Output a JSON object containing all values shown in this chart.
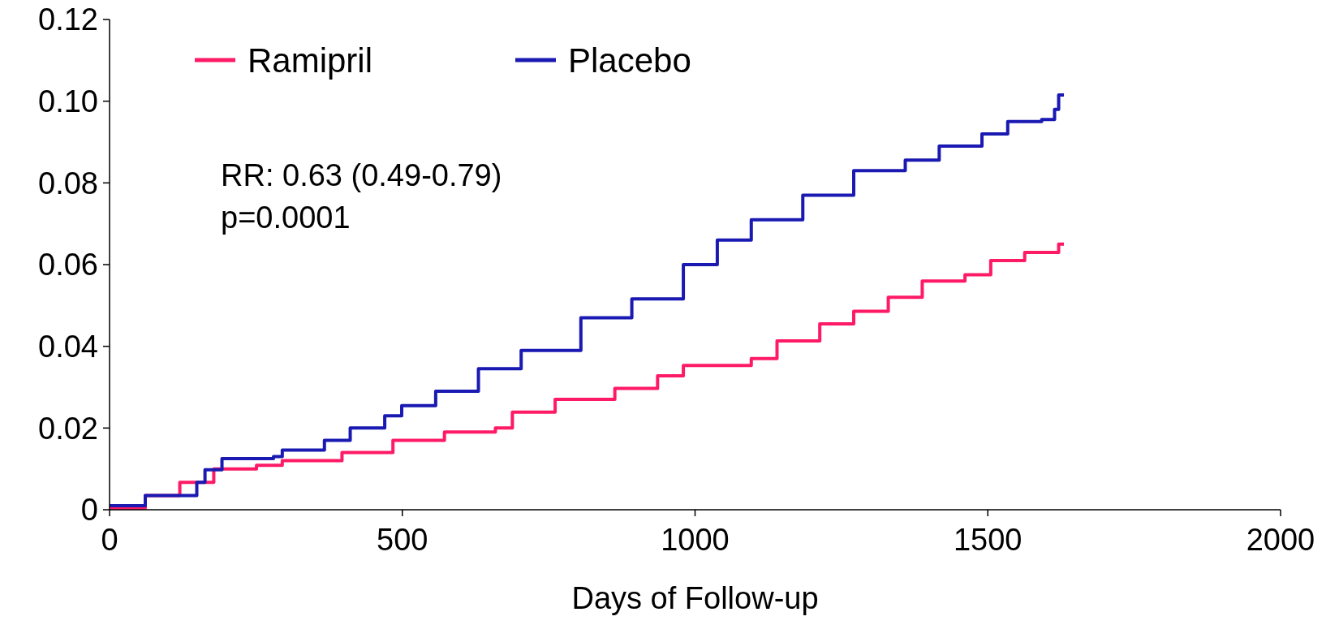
{
  "chart_data": {
    "type": "step",
    "xlabel": "Days of Follow-up",
    "xlim": [
      0,
      2000
    ],
    "xticks": [
      0,
      500,
      1000,
      1500,
      2000
    ],
    "ylim": [
      0,
      0.12
    ],
    "yticks": [
      {
        "value": 0,
        "label": "0"
      },
      {
        "value": 0.02,
        "label": "0.02"
      },
      {
        "value": 0.04,
        "label": "0.04"
      },
      {
        "value": 0.06,
        "label": "0.06"
      },
      {
        "value": 0.08,
        "label": "0.08"
      },
      {
        "value": 0.1,
        "label": "0.10"
      },
      {
        "value": 0.12,
        "label": "0.12"
      }
    ],
    "grid": false,
    "legend": "top left",
    "marker": "none",
    "line_style": "solid",
    "annotations": [
      "RR: 0.63 (0.49-0.79)",
      "p=0.0001"
    ],
    "series": [
      {
        "name": "Ramipril",
        "color": "#ff1a66",
        "x": [
          0,
          61,
          120,
          178,
          207,
          251,
          295,
          397,
          484,
          572,
          659,
          688,
          761,
          863,
          936,
          980,
          1096,
          1140,
          1213,
          1271,
          1330,
          1388,
          1461,
          1505,
          1563,
          1621,
          1630
        ],
        "values": [
          0.0004,
          0.0035,
          0.0067,
          0.01,
          0.01,
          0.0109,
          0.012,
          0.014,
          0.017,
          0.019,
          0.02,
          0.0239,
          0.027,
          0.0297,
          0.0328,
          0.0353,
          0.037,
          0.0413,
          0.0455,
          0.0486,
          0.052,
          0.056,
          0.0575,
          0.061,
          0.063,
          0.065,
          0.065
        ]
      },
      {
        "name": "Placebo",
        "color": "#1a1ab3",
        "x": [
          0,
          61,
          149,
          163,
          192,
          280,
          295,
          367,
          411,
          470,
          499,
          557,
          630,
          703,
          805,
          892,
          980,
          1038,
          1096,
          1184,
          1271,
          1359,
          1417,
          1490,
          1534,
          1592,
          1614,
          1621,
          1630
        ],
        "values": [
          0.001,
          0.0035,
          0.0067,
          0.0098,
          0.0125,
          0.013,
          0.0146,
          0.017,
          0.02,
          0.023,
          0.0255,
          0.029,
          0.0345,
          0.039,
          0.047,
          0.0516,
          0.06,
          0.066,
          0.071,
          0.077,
          0.083,
          0.0856,
          0.089,
          0.092,
          0.095,
          0.0955,
          0.098,
          0.1015,
          0.1015
        ]
      }
    ]
  }
}
